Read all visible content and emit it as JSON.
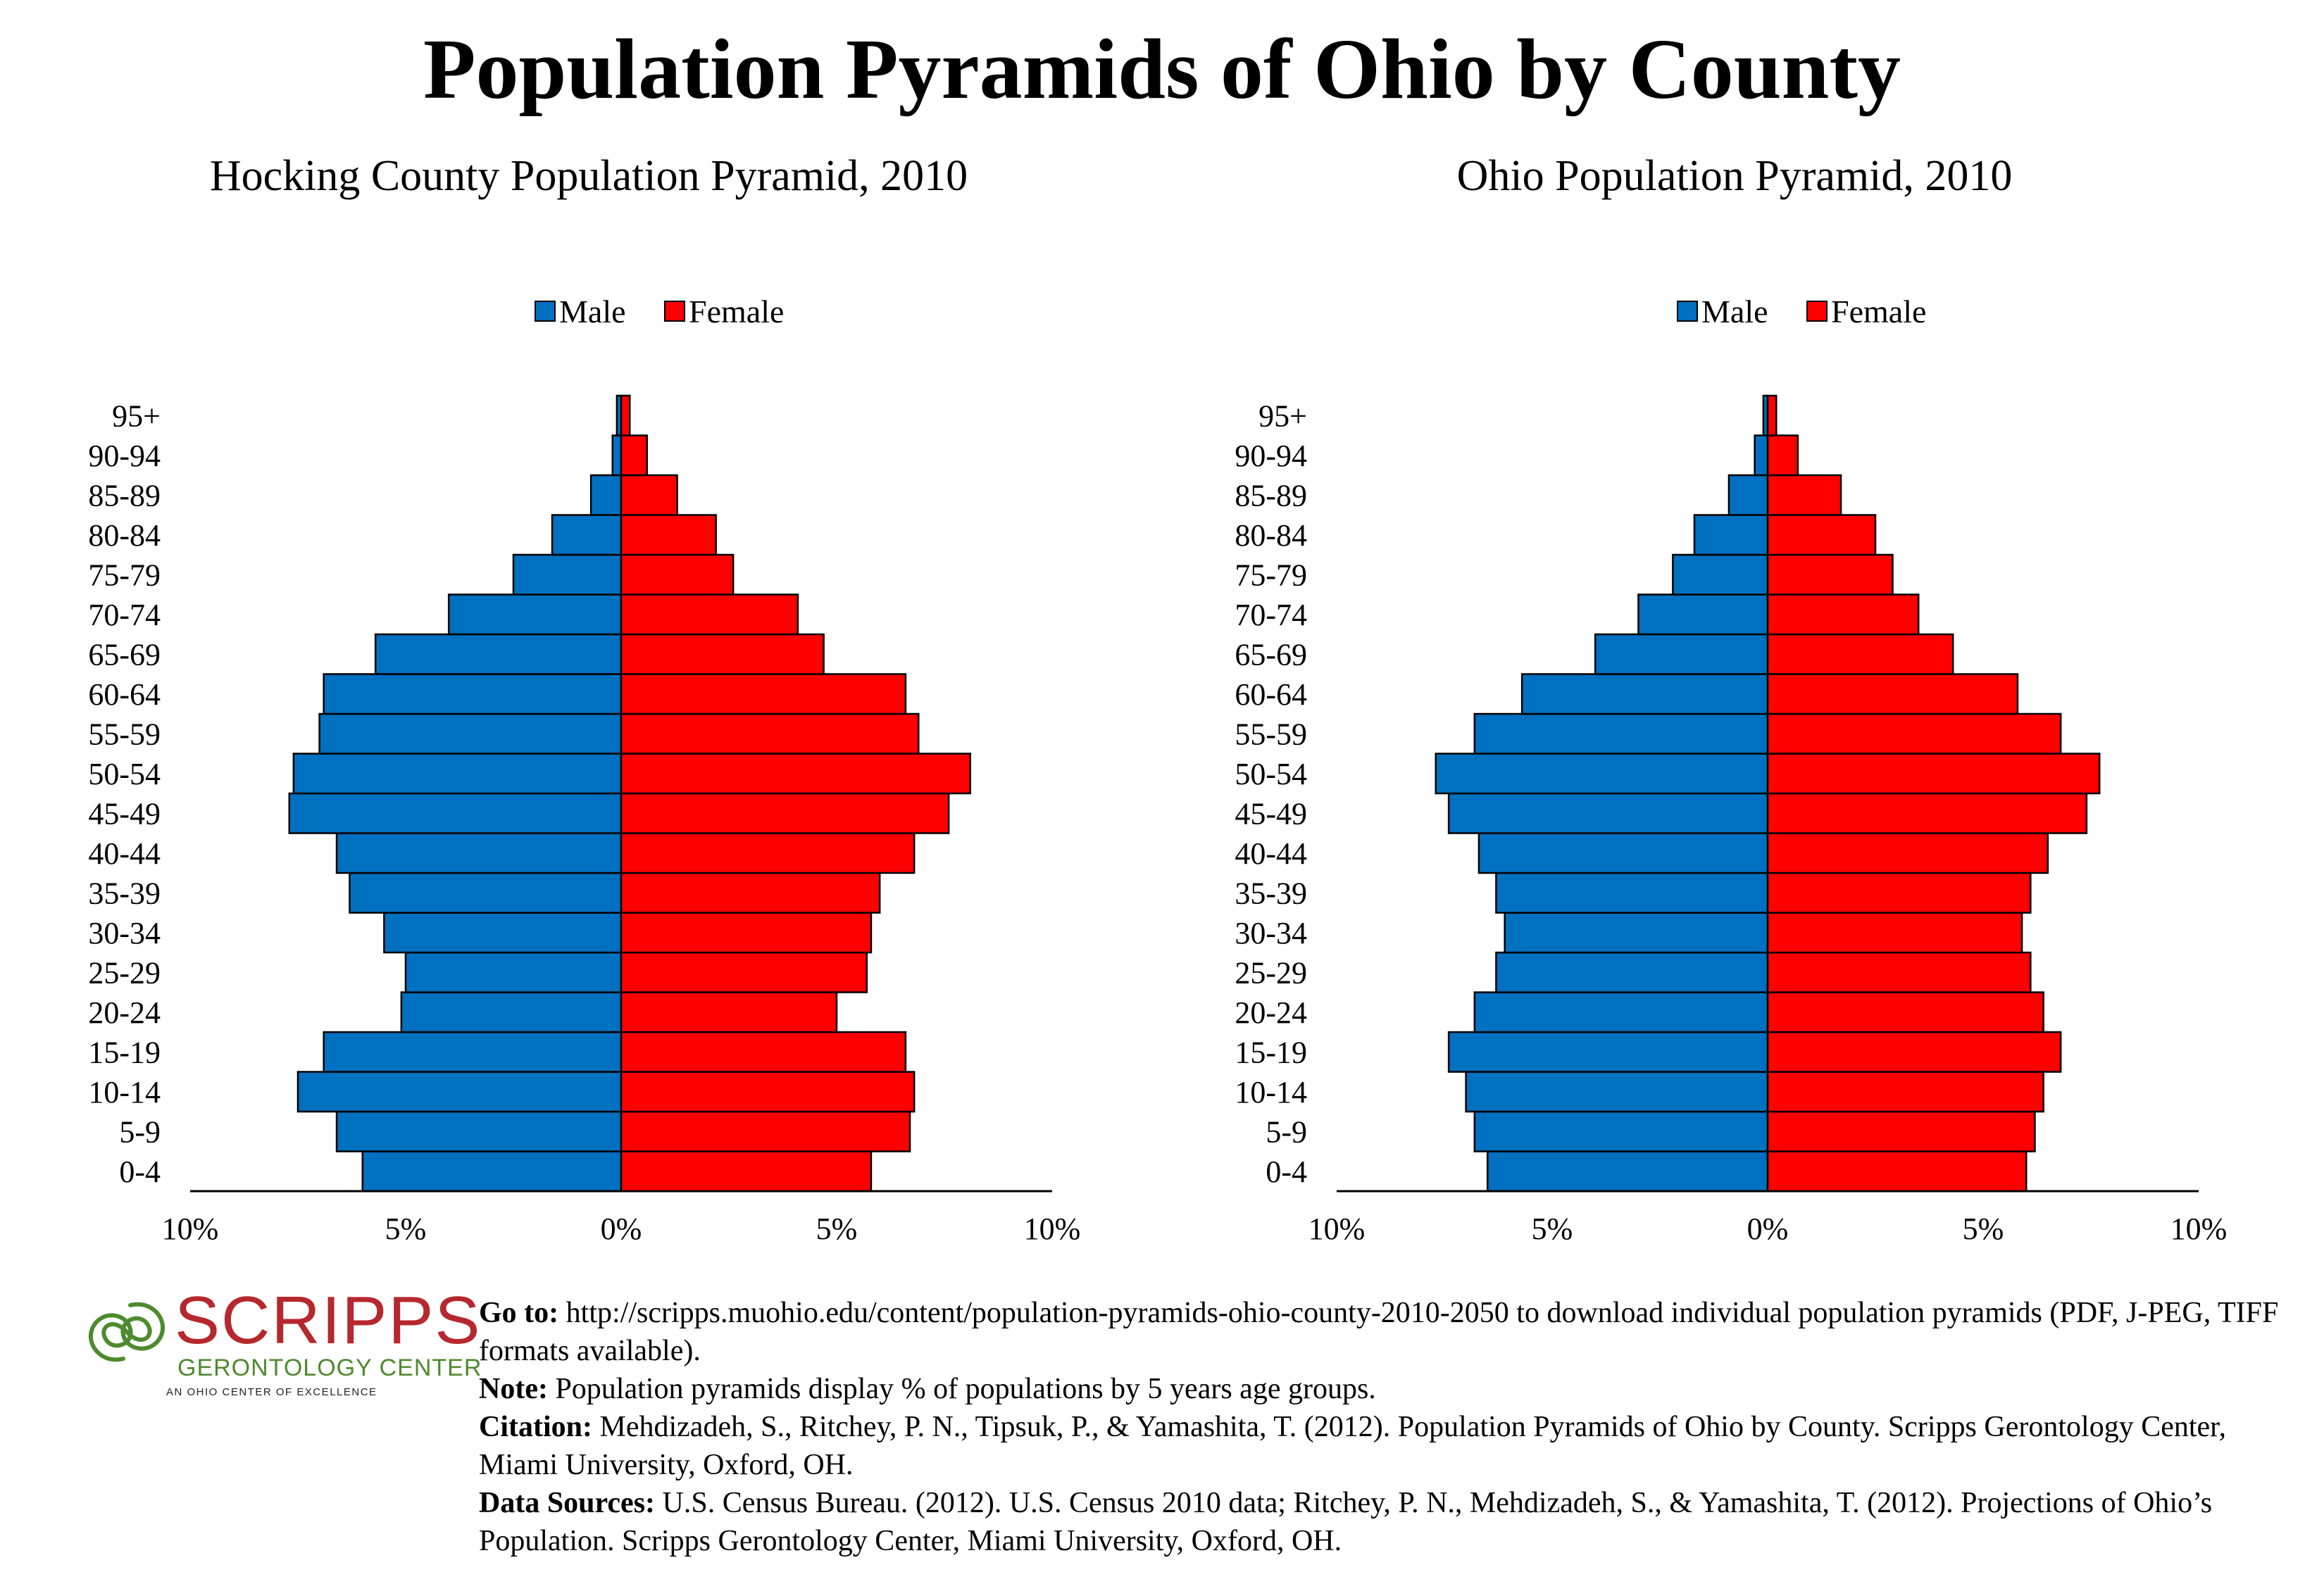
{
  "title": "Population Pyramids of Ohio by County",
  "colors": {
    "male": "#0070C0",
    "female": "#FF0000",
    "logo_red": "#B5282E",
    "logo_green": "#4E8A2E"
  },
  "chart_data": [
    {
      "type": "bar",
      "orientation": "horizontal-pyramid",
      "title": "Hocking County Population Pyramid, 2010",
      "categories": [
        "0-4",
        "5-9",
        "10-14",
        "15-19",
        "20-24",
        "25-29",
        "30-34",
        "35-39",
        "40-44",
        "45-49",
        "50-54",
        "55-59",
        "60-64",
        "65-69",
        "70-74",
        "75-79",
        "80-84",
        "85-89",
        "90-94",
        "95+"
      ],
      "series": [
        {
          "name": "Male",
          "values": [
            6.0,
            6.6,
            7.5,
            6.9,
            5.1,
            5.0,
            5.5,
            6.3,
            6.6,
            7.7,
            7.6,
            7.0,
            6.9,
            5.7,
            4.0,
            2.5,
            1.6,
            0.7,
            0.2,
            0.1
          ]
        },
        {
          "name": "Female",
          "values": [
            5.8,
            6.7,
            6.8,
            6.6,
            5.0,
            5.7,
            5.8,
            6.0,
            6.8,
            7.6,
            8.1,
            6.9,
            6.6,
            4.7,
            4.1,
            2.6,
            2.2,
            1.3,
            0.6,
            0.2
          ]
        }
      ],
      "xlim": [
        -10,
        10
      ],
      "xticks": [
        "10%",
        "5%",
        "0%",
        "5%",
        "10%"
      ],
      "legend": [
        "Male",
        "Female"
      ],
      "legend_position": "top-center",
      "grid": false
    },
    {
      "type": "bar",
      "orientation": "horizontal-pyramid",
      "title": "Ohio Population Pyramid, 2010",
      "categories": [
        "0-4",
        "5-9",
        "10-14",
        "15-19",
        "20-24",
        "25-29",
        "30-34",
        "35-39",
        "40-44",
        "45-49",
        "50-54",
        "55-59",
        "60-64",
        "65-69",
        "70-74",
        "75-79",
        "80-84",
        "85-89",
        "90-94",
        "95+"
      ],
      "series": [
        {
          "name": "Male",
          "values": [
            6.5,
            6.8,
            7.0,
            7.4,
            6.8,
            6.3,
            6.1,
            6.3,
            6.7,
            7.4,
            7.7,
            6.8,
            5.7,
            4.0,
            3.0,
            2.2,
            1.7,
            0.9,
            0.3,
            0.1
          ]
        },
        {
          "name": "Female",
          "values": [
            6.0,
            6.2,
            6.4,
            6.8,
            6.4,
            6.1,
            5.9,
            6.1,
            6.5,
            7.4,
            7.7,
            6.8,
            5.8,
            4.3,
            3.5,
            2.9,
            2.5,
            1.7,
            0.7,
            0.2
          ]
        }
      ],
      "xlim": [
        -10,
        10
      ],
      "xticks": [
        "10%",
        "5%",
        "0%",
        "5%",
        "10%"
      ],
      "legend": [
        "Male",
        "Female"
      ],
      "legend_position": "top-center",
      "grid": false
    }
  ],
  "logo": {
    "word": "SCRIPPS",
    "subtitle": "GERONTOLOGY CENTER",
    "tagline": "AN OHIO CENTER OF EXCELLENCE"
  },
  "notes": {
    "goto_label": "Go to:",
    "goto_text": " http://scripps.muohio.edu/content/population-pyramids-ohio-county-2010-2050 to download individual population pyramids (PDF, J-PEG, TIFF formats available).",
    "note_label": "Note:",
    "note_text": " Population pyramids display % of populations by 5 years age groups.",
    "citation_label": "Citation:",
    "citation_text": " Mehdizadeh, S., Ritchey, P. N., Tipsuk, P., & Yamashita, T. (2012). Population Pyramids of Ohio by County. Scripps Gerontology Center, Miami University, Oxford, OH.",
    "sources_label": "Data Sources:",
    "sources_text": " U.S. Census Bureau. (2012). U.S. Census 2010 data; Ritchey, P. N., Mehdizadeh, S., & Yamashita, T. (2012). Projections of Ohio’s Population. Scripps Gerontology Center, Miami University, Oxford, OH."
  }
}
